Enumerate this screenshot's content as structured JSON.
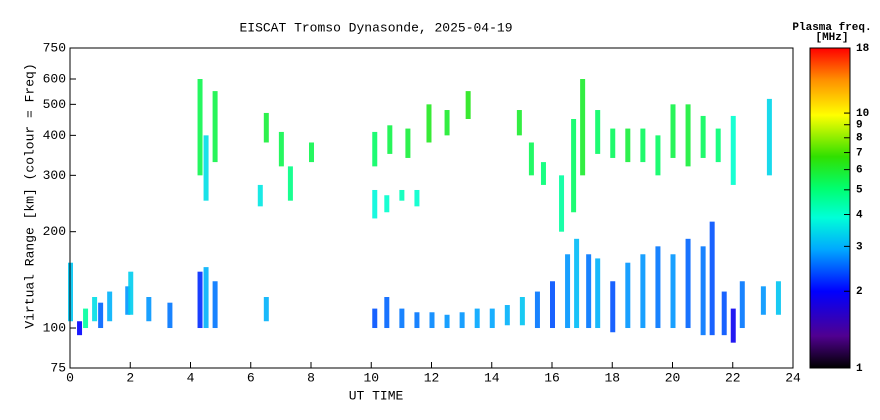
{
  "chart_data": {
    "type": "range_scatter",
    "title": "EISCAT Tromso Dynasonde, 2025-04-19",
    "x_label": "UT TIME",
    "y_label": "Virtual Range [km] (colour = Freq)",
    "colorbar_title": "Plasma freq.",
    "colorbar_unit": "[MHz]",
    "xlim": [
      0,
      24
    ],
    "xticks": [
      0,
      2,
      4,
      6,
      8,
      10,
      12,
      14,
      16,
      18,
      20,
      22,
      24
    ],
    "ylim": [
      75,
      750
    ],
    "yticks": [
      75,
      100,
      200,
      300,
      400,
      500,
      600,
      750
    ],
    "y_log": true,
    "clim": [
      1,
      18
    ],
    "cticks": [
      1,
      2,
      3,
      4,
      5,
      6,
      7,
      8,
      9,
      10,
      18
    ],
    "c_log": true,
    "x": [
      0.0,
      0.3,
      0.5,
      0.8,
      1.0,
      1.3,
      1.9,
      2.0,
      2.6,
      3.3,
      4.3,
      4.5,
      4.8,
      6.5,
      10.1,
      10.5,
      11.0,
      11.5,
      12.0,
      12.5,
      13.0,
      13.5,
      14.0,
      14.5,
      15.0,
      15.5,
      16.0,
      16.5,
      16.8,
      17.2,
      17.5,
      18.0,
      18.5,
      19.0,
      19.5,
      20.0,
      20.5,
      21.0,
      21.3,
      21.7,
      22.0,
      22.3,
      23.0,
      23.5,
      4.3,
      4.5,
      4.8,
      6.5,
      6.3,
      7.0,
      7.3,
      8.0,
      10.1,
      10.1,
      10.5,
      11.0,
      11.5,
      10.6,
      11.2,
      11.9,
      12.5,
      13.2,
      14.9,
      15.3,
      15.7,
      16.3,
      16.7,
      17.0,
      17.5,
      18.0,
      18.5,
      19.0,
      19.5,
      20.0,
      20.5,
      21.0,
      21.5,
      22.0,
      23.2
    ],
    "y_low": [
      105,
      95,
      100,
      105,
      100,
      105,
      110,
      110,
      105,
      100,
      100,
      100,
      100,
      105,
      100,
      100,
      100,
      100,
      100,
      100,
      100,
      100,
      100,
      102,
      102,
      100,
      100,
      100,
      100,
      100,
      100,
      97,
      100,
      100,
      100,
      100,
      100,
      95,
      95,
      95,
      90,
      100,
      110,
      110,
      300,
      250,
      330,
      380,
      240,
      320,
      250,
      330,
      320,
      220,
      230,
      250,
      240,
      350,
      340,
      380,
      400,
      450,
      400,
      300,
      280,
      200,
      230,
      300,
      350,
      340,
      330,
      330,
      300,
      340,
      320,
      340,
      330,
      280,
      300
    ],
    "y_high": [
      160,
      105,
      115,
      125,
      120,
      130,
      135,
      150,
      125,
      120,
      150,
      155,
      140,
      125,
      115,
      125,
      115,
      112,
      112,
      110,
      112,
      115,
      115,
      118,
      125,
      130,
      140,
      170,
      190,
      170,
      165,
      140,
      160,
      170,
      180,
      170,
      190,
      180,
      215,
      130,
      115,
      140,
      135,
      140,
      600,
      400,
      550,
      470,
      280,
      410,
      320,
      380,
      410,
      270,
      260,
      270,
      270,
      430,
      420,
      500,
      480,
      550,
      480,
      380,
      330,
      300,
      450,
      600,
      480,
      420,
      420,
      420,
      400,
      500,
      500,
      460,
      420,
      460,
      520
    ],
    "freq": [
      3.2,
      2.0,
      4.5,
      3.5,
      2.5,
      3.0,
      2.8,
      3.3,
      2.8,
      2.6,
      2.2,
      3.0,
      2.6,
      3.0,
      2.4,
      2.5,
      2.6,
      2.6,
      2.7,
      2.8,
      2.8,
      2.9,
      2.9,
      3.0,
      3.2,
      2.6,
      2.4,
      2.8,
      3.1,
      2.6,
      3.0,
      2.4,
      2.8,
      2.8,
      2.6,
      2.8,
      2.5,
      2.6,
      2.4,
      2.4,
      1.9,
      2.6,
      2.8,
      3.2,
      5.5,
      3.5,
      5.6,
      5.8,
      3.6,
      5.5,
      4.8,
      5.5,
      5.2,
      3.8,
      4.0,
      4.2,
      4.0,
      5.6,
      5.8,
      6.2,
      6.0,
      6.3,
      6.0,
      5.4,
      5.0,
      4.5,
      5.2,
      6.0,
      5.2,
      5.3,
      5.8,
      5.3,
      5.2,
      5.6,
      5.8,
      5.3,
      5.0,
      4.0,
      3.4
    ]
  }
}
